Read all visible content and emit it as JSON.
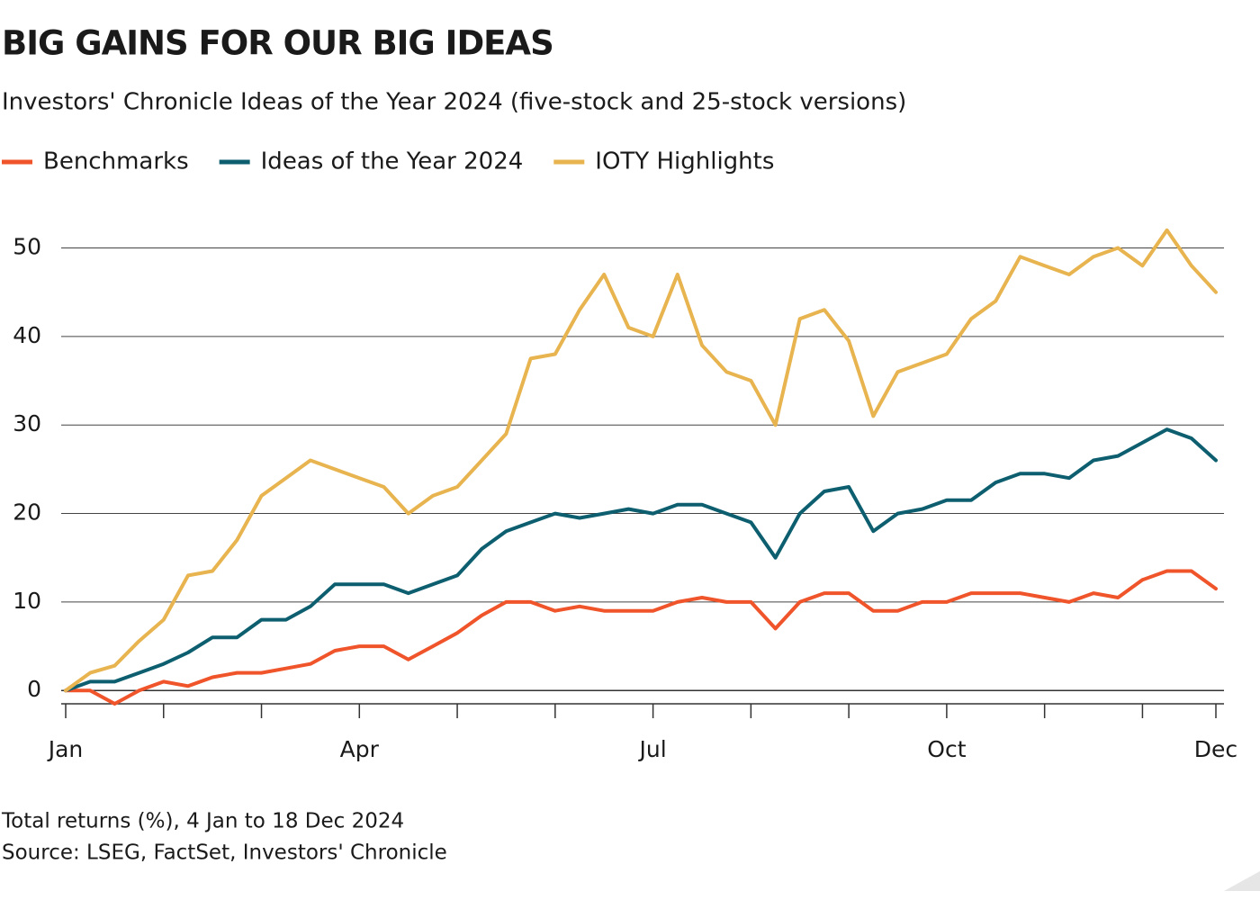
{
  "chart_data": {
    "type": "line",
    "title": "BIG GAINS FOR OUR BIG IDEAS",
    "subtitle": "Investors' Chronicle Ideas of the Year 2024 (five-stock and 25-stock versions)",
    "notes": [
      "Total returns (%), 4 Jan to 18 Dec 2024",
      "Source: LSEG, FactSet, Investors' Chronicle"
    ],
    "categories": [
      "Jan",
      null,
      null,
      null,
      null,
      null,
      null,
      null,
      null,
      null,
      null,
      null,
      "Apr",
      null,
      null,
      null,
      null,
      null,
      null,
      null,
      null,
      null,
      null,
      null,
      "Jul",
      null,
      null,
      null,
      null,
      null,
      null,
      null,
      null,
      null,
      null,
      null,
      "Oct",
      null,
      null,
      null,
      null,
      null,
      null,
      null,
      null,
      null,
      null,
      "Dec"
    ],
    "series": [
      {
        "name": "Benchmarks",
        "color": "#f0542a",
        "values": [
          0,
          0,
          -1.5,
          0,
          1,
          0.5,
          1.5,
          2,
          2,
          2.5,
          3,
          4.5,
          5,
          5,
          3.5,
          5,
          6.5,
          8.5,
          10,
          10,
          9,
          9.5,
          9,
          9,
          9,
          10,
          10.5,
          10,
          10,
          7,
          10,
          11,
          11,
          9,
          9,
          10,
          10,
          11,
          11,
          11,
          10.5,
          10,
          11,
          10.5,
          12.5,
          13.5,
          13.5,
          11.5
        ]
      },
      {
        "name": "Ideas of the Year 2024",
        "color": "#0d5f70",
        "values": [
          0,
          1,
          1,
          2,
          3,
          4.3,
          6,
          6,
          8,
          8,
          9.5,
          12,
          12,
          12,
          11,
          12,
          13,
          16,
          18,
          19,
          20,
          19.5,
          20,
          20.5,
          20,
          21,
          21,
          20,
          19,
          15,
          20,
          22.5,
          23,
          18,
          20,
          20.5,
          21.5,
          21.5,
          23.5,
          24.5,
          24.5,
          24,
          26,
          26.5,
          28,
          29.5,
          28.5,
          26
        ]
      },
      {
        "name": "IOTY Highlights",
        "color": "#e8b44f",
        "values": [
          0,
          2,
          2.8,
          5.6,
          8,
          13,
          13.5,
          17,
          22,
          24,
          26,
          25,
          24,
          23,
          20,
          22,
          23,
          26,
          29,
          37.5,
          38,
          43,
          47,
          41,
          40,
          47,
          39,
          36,
          35,
          30,
          42,
          43,
          39.5,
          31,
          36,
          37,
          38,
          42,
          44,
          49,
          48,
          47,
          49,
          50,
          48,
          52,
          48,
          45
        ]
      }
    ],
    "ylim": [
      -1.5,
      53
    ],
    "yticks": [
      0,
      10,
      20,
      30,
      40,
      50
    ],
    "grid": true
  }
}
